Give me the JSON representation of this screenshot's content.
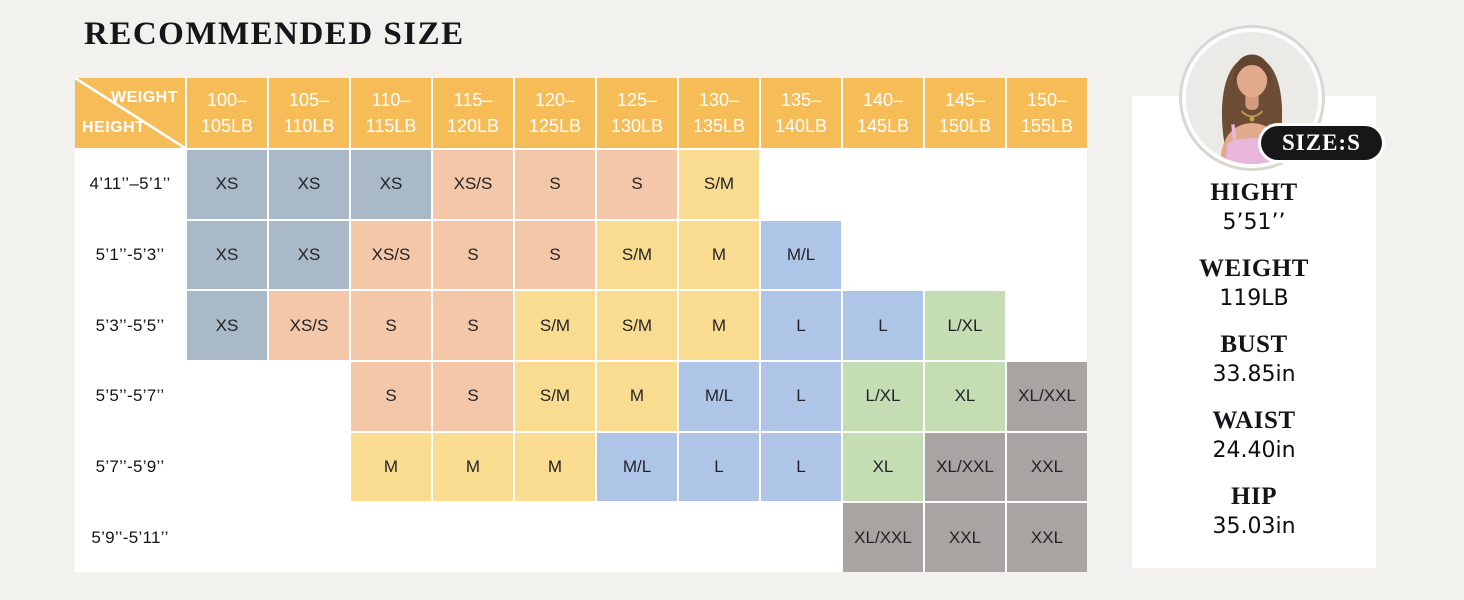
{
  "page": {
    "title": "RECOMMENDED SIZE",
    "background": "#f2f1ee"
  },
  "colors": {
    "header_bg": "#f6bc57",
    "header_text": "#ffffff",
    "group_xs": "#aab9c8",
    "group_s": "#f4c7a8",
    "group_m": "#fadc90",
    "group_l": "#aec5e8",
    "group_xl": "#c4ddb2",
    "group_xxl": "#a8a4a2"
  },
  "size_chart": {
    "corner": {
      "top_right": "WEIGHT",
      "bottom_left": "HEIGHT"
    },
    "weight_columns": [
      {
        "line1": "100–",
        "line2": "105LB"
      },
      {
        "line1": "105–",
        "line2": "110LB"
      },
      {
        "line1": "110–",
        "line2": "115LB"
      },
      {
        "line1": "115–",
        "line2": "120LB"
      },
      {
        "line1": "120–",
        "line2": "125LB"
      },
      {
        "line1": "125–",
        "line2": "130LB"
      },
      {
        "line1": "130–",
        "line2": "135LB"
      },
      {
        "line1": "135–",
        "line2": "140LB"
      },
      {
        "line1": "140–",
        "line2": "145LB"
      },
      {
        "line1": "145–",
        "line2": "150LB"
      },
      {
        "line1": "150–",
        "line2": "155LB"
      }
    ],
    "size_color_groups": {
      "XS": "group_xs",
      "XS/S": "group_s",
      "S": "group_s",
      "S/M": "group_m",
      "M": "group_m",
      "M/L": "group_l",
      "L": "group_l",
      "L/XL": "group_xl",
      "XL": "group_xl",
      "XL/XXL": "group_xxl",
      "XXL": "group_xxl"
    },
    "rows": [
      {
        "height_label": "4’11’’–5’1’’",
        "cells": [
          "XS",
          "XS",
          "XS",
          "XS/S",
          "S",
          "S",
          "S/M",
          "",
          "",
          "",
          ""
        ]
      },
      {
        "height_label": "5’1’’-5’3’’",
        "cells": [
          "XS",
          "XS",
          "XS/S",
          "S",
          "S",
          "S/M",
          "M",
          "M/L",
          "",
          "",
          ""
        ]
      },
      {
        "height_label": "5’3’’-5’5’’",
        "cells": [
          "XS",
          "XS/S",
          "S",
          "S",
          "S/M",
          "S/M",
          "M",
          "L",
          "L",
          "L/XL",
          ""
        ]
      },
      {
        "height_label": "5’5’’-5’7’’",
        "cells": [
          "",
          "",
          "S",
          "S",
          "S/M",
          "M",
          "M/L",
          "L",
          "L/XL",
          "XL",
          "XL/XXL"
        ]
      },
      {
        "height_label": "5’7’’-5’9’’",
        "cells": [
          "",
          "",
          "M",
          "M",
          "M",
          "M/L",
          "L",
          "L",
          "XL",
          "XL/XXL",
          "XXL"
        ]
      },
      {
        "height_label": "5’9’’-5’11’’",
        "cells": [
          "",
          "",
          "",
          "",
          "",
          "",
          "",
          "",
          "XL/XXL",
          "XXL",
          "XXL"
        ]
      }
    ]
  },
  "model_panel": {
    "badge": "SIZE:S",
    "stats": [
      {
        "label": "HIGHT",
        "value": "5’51’’"
      },
      {
        "label": "WEIGHT",
        "value": "119LB"
      },
      {
        "label": "BUST",
        "value": "33.85in"
      },
      {
        "label": "WAIST",
        "value": "24.40in"
      },
      {
        "label": "HIP",
        "value": "35.03in"
      }
    ]
  }
}
